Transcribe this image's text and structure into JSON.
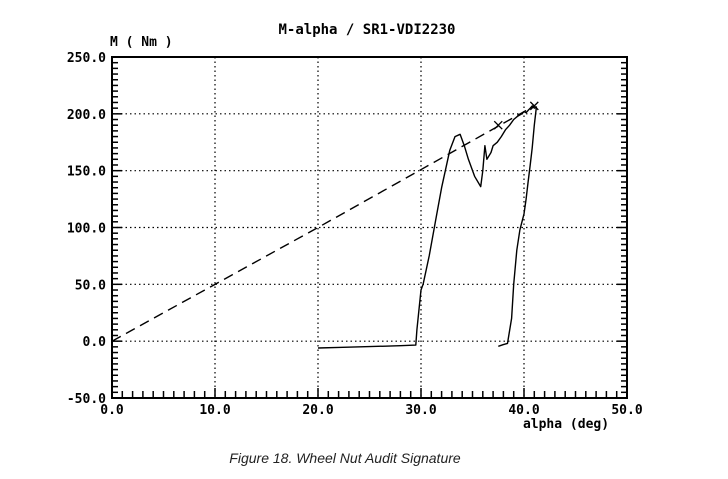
{
  "figure": {
    "caption": "Figure 18. Wheel Nut Audit Signature"
  },
  "chart_data": {
    "type": "line",
    "title": "M-alpha / SR1-VDI2230",
    "xlabel": "alpha (deg)",
    "ylabel": "M ( Nm )",
    "xlim": [
      0,
      50
    ],
    "ylim": [
      -50,
      250
    ],
    "x_ticks": [
      "0.0",
      "10.0",
      "20.0",
      "30.0",
      "40.0",
      "50.0"
    ],
    "y_ticks": [
      "-50.0",
      "0.0",
      "50.0",
      "100.0",
      "150.0",
      "200.0",
      "250.0"
    ],
    "grid": true,
    "series": [
      {
        "style": "solid",
        "color": "#000000",
        "x": [
          20.0,
          22.0,
          25.0,
          28.0,
          29.5,
          29.6,
          30.0,
          30.2,
          30.8,
          31.5,
          32.0,
          32.8,
          33.3,
          33.8,
          34.2,
          34.6,
          35.2,
          35.8,
          36.0,
          36.2,
          36.4,
          36.8,
          37.0,
          37.4,
          37.8,
          38.2,
          38.6,
          39.0,
          39.4,
          39.8,
          40.0,
          40.2,
          40.4,
          40.6,
          40.8,
          41.0,
          41.2,
          41.0,
          40.8,
          40.6,
          40.4,
          40.2,
          40.0,
          39.6,
          39.3,
          39.0,
          38.8,
          38.4,
          38.0,
          37.5
        ],
        "y": [
          -6.0,
          -5.5,
          -4.8,
          -4.0,
          -3.5,
          10.0,
          45.0,
          50.0,
          75.0,
          110.0,
          135.0,
          168.0,
          180.0,
          182.0,
          172.0,
          160.0,
          145.0,
          136.0,
          150.0,
          172.0,
          160.0,
          166.0,
          172.0,
          175.0,
          180.0,
          186.0,
          190.0,
          195.0,
          198.0,
          200.0,
          202.0,
          201.0,
          203.0,
          205.0,
          207.0,
          205.0,
          206.0,
          190.0,
          170.0,
          155.0,
          140.0,
          125.0,
          112.0,
          98.0,
          80.0,
          50.0,
          20.0,
          -2.0,
          -3.0,
          -4.5
        ]
      },
      {
        "style": "dashed",
        "color": "#000000",
        "x": [
          0.0,
          20.0,
          41.0
        ],
        "y": [
          0.0,
          100.0,
          207.0
        ]
      }
    ],
    "annotations": [
      {
        "marker": "x",
        "x": 41.0,
        "y": 207.0
      },
      {
        "marker": "x",
        "x": 37.5,
        "y": 190.0
      }
    ]
  }
}
